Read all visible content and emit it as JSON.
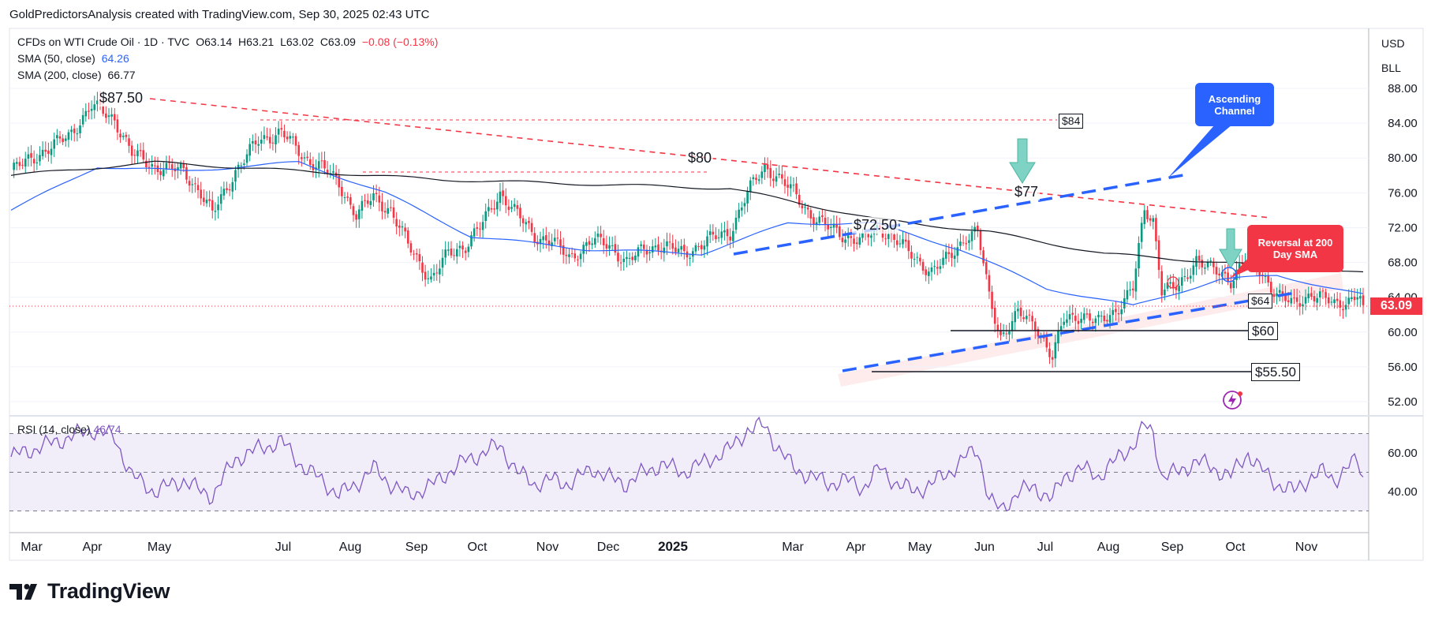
{
  "caption": "GoldPredictorsAnalysis created with TradingView.com, Sep 30, 2025 02:43 UTC",
  "legend": {
    "symbol": "CFDs on WTI Crude Oil · 1D · TVC",
    "open": "O63.14",
    "high": "H63.21",
    "low": "L63.02",
    "close": "C63.09",
    "change": "−0.08 (−0.13%)",
    "sma50_label": "SMA (50, close)",
    "sma50_value": "64.26",
    "sma200_label": "SMA (200, close)",
    "sma200_value": "66.77",
    "rsi_label": "RSI (14, close)",
    "rsi_value": "46.74"
  },
  "axis": {
    "currency": "USD",
    "unit": "BLL",
    "current_price": "63.09"
  },
  "annotations": {
    "peak_87": "$87.50",
    "peak_80": "$80",
    "peak_77": "$77",
    "level_72": "$72.50",
    "level_84": "$84",
    "level_64": "$64",
    "level_60": "$60",
    "level_55": "$55.50",
    "callout_channel": "Ascending Channel",
    "callout_reversal": "Reversal at 200 Day SMA"
  },
  "brand": "TradingView",
  "colors": {
    "up": "#089981",
    "down": "#f23645",
    "sma50": "#2962ff",
    "sma200": "#131722",
    "rsi": "#7e57c2",
    "accent_blue": "#2962ff",
    "accent_red": "#f23645"
  },
  "chart_data": [
    {
      "type": "candlestick",
      "ylim": [
        50,
        90
      ],
      "y_ticks": [
        "88.00",
        "84.00",
        "80.00",
        "76.00",
        "72.00",
        "68.00",
        "64.00",
        "60.00",
        "56.00",
        "52.00"
      ],
      "x_ticks": [
        "Mar",
        "Apr",
        "May",
        "Jul",
        "Aug",
        "Sep",
        "Oct",
        "Nov",
        "Dec",
        "2025",
        "Mar",
        "Apr",
        "May",
        "Jun",
        "Jul",
        "Aug",
        "Sep",
        "Oct",
        "Nov"
      ],
      "series": [
        {
          "name": "WTI Crude Oil",
          "close_path": [
            [
              0,
              78.5
            ],
            [
              10,
              80.5
            ],
            [
              20,
              82.5
            ],
            [
              28,
              86
            ],
            [
              36,
              84.5
            ],
            [
              42,
              80.5
            ],
            [
              50,
              79
            ],
            [
              60,
              78.5
            ],
            [
              66,
              76
            ],
            [
              70,
              73.5
            ],
            [
              78,
              78.5
            ],
            [
              86,
              82
            ],
            [
              94,
              83
            ],
            [
              102,
              80
            ],
            [
              108,
              79
            ],
            [
              114,
              77
            ],
            [
              120,
              73.5
            ],
            [
              126,
              75.5
            ],
            [
              132,
              74
            ],
            [
              138,
              70
            ],
            [
              146,
              66
            ],
            [
              152,
              69
            ],
            [
              158,
              70
            ],
            [
              164,
              72.5
            ],
            [
              170,
              76
            ],
            [
              176,
              73.5
            ],
            [
              182,
              71
            ],
            [
              188,
              70.5
            ],
            [
              194,
              68.5
            ],
            [
              202,
              70.5
            ],
            [
              208,
              70
            ],
            [
              214,
              68
            ],
            [
              220,
              69.5
            ],
            [
              226,
              70
            ],
            [
              234,
              69
            ],
            [
              242,
              70.5
            ],
            [
              250,
              71.5
            ],
            [
              256,
              76
            ],
            [
              262,
              79
            ],
            [
              266,
              78
            ],
            [
              272,
              76
            ],
            [
              278,
              73.5
            ],
            [
              284,
              72
            ],
            [
              290,
              71
            ],
            [
              296,
              70.5
            ],
            [
              302,
              72
            ],
            [
              308,
              70.5
            ],
            [
              314,
              68.5
            ],
            [
              320,
              67
            ],
            [
              326,
              68.5
            ],
            [
              332,
              71
            ],
            [
              336,
              71.5
            ],
            [
              340,
              64
            ],
            [
              344,
              59.5
            ],
            [
              350,
              62
            ],
            [
              356,
              61
            ],
            [
              362,
              57
            ],
            [
              366,
              61.5
            ],
            [
              372,
              62
            ],
            [
              378,
              61
            ],
            [
              384,
              62.5
            ],
            [
              390,
              65
            ],
            [
              394,
              74
            ],
            [
              397,
              73
            ],
            [
              400,
              65
            ],
            [
              406,
              65
            ],
            [
              412,
              68.5
            ],
            [
              418,
              67
            ],
            [
              424,
              66
            ],
            [
              430,
              69
            ],
            [
              434,
              67
            ],
            [
              440,
              64.5
            ],
            [
              446,
              63
            ],
            [
              452,
              64.5
            ],
            [
              456,
              64
            ],
            [
              460,
              63
            ],
            [
              464,
              63.5
            ],
            [
              468,
              64.5
            ],
            [
              470,
              63.1
            ]
          ]
        },
        {
          "name": "SMA (50, close)",
          "values": [
            [
              0,
              74
            ],
            [
              30,
              79
            ],
            [
              60,
              78.5
            ],
            [
              100,
              79.5
            ],
            [
              130,
              76
            ],
            [
              160,
              71
            ],
            [
              200,
              69.5
            ],
            [
              240,
              69
            ],
            [
              270,
              72.5
            ],
            [
              300,
              72.5
            ],
            [
              330,
              69.5
            ],
            [
              360,
              65
            ],
            [
              390,
              63
            ],
            [
              420,
              66
            ],
            [
              440,
              66.5
            ],
            [
              470,
              64.26
            ]
          ]
        },
        {
          "name": "SMA (200, close)",
          "values": [
            [
              0,
              78
            ],
            [
              50,
              79.5
            ],
            [
              100,
              78.5
            ],
            [
              150,
              77.5
            ],
            [
              200,
              77
            ],
            [
              250,
              76.5
            ],
            [
              300,
              73
            ],
            [
              340,
              71.5
            ],
            [
              380,
              69
            ],
            [
              420,
              68
            ],
            [
              470,
              66.77
            ]
          ]
        }
      ]
    },
    {
      "type": "line",
      "name": "RSI (14, close)",
      "ylim": [
        20,
        80
      ],
      "y_ticks": [
        "60.00",
        "40.00"
      ],
      "bands": [
        70,
        50,
        30
      ],
      "values": [
        [
          0,
          58
        ],
        [
          10,
          63
        ],
        [
          20,
          68
        ],
        [
          28,
          72
        ],
        [
          36,
          68
        ],
        [
          42,
          48
        ],
        [
          50,
          40
        ],
        [
          60,
          46
        ],
        [
          66,
          40
        ],
        [
          70,
          38
        ],
        [
          78,
          57
        ],
        [
          86,
          62
        ],
        [
          94,
          66
        ],
        [
          102,
          52
        ],
        [
          108,
          46
        ],
        [
          114,
          38
        ],
        [
          120,
          44
        ],
        [
          126,
          52
        ],
        [
          132,
          44
        ],
        [
          138,
          38
        ],
        [
          146,
          43
        ],
        [
          152,
          50
        ],
        [
          158,
          56
        ],
        [
          164,
          60
        ],
        [
          170,
          64
        ],
        [
          176,
          50
        ],
        [
          182,
          44
        ],
        [
          188,
          46
        ],
        [
          194,
          44
        ],
        [
          202,
          52
        ],
        [
          208,
          47
        ],
        [
          214,
          44
        ],
        [
          220,
          50
        ],
        [
          226,
          54
        ],
        [
          234,
          50
        ],
        [
          242,
          56
        ],
        [
          250,
          62
        ],
        [
          256,
          72
        ],
        [
          262,
          74
        ],
        [
          266,
          64
        ],
        [
          272,
          52
        ],
        [
          278,
          48
        ],
        [
          284,
          44
        ],
        [
          290,
          46
        ],
        [
          296,
          42
        ],
        [
          302,
          52
        ],
        [
          308,
          44
        ],
        [
          314,
          40
        ],
        [
          320,
          44
        ],
        [
          326,
          50
        ],
        [
          332,
          58
        ],
        [
          336,
          62
        ],
        [
          340,
          36
        ],
        [
          344,
          30
        ],
        [
          350,
          40
        ],
        [
          356,
          42
        ],
        [
          362,
          36
        ],
        [
          366,
          48
        ],
        [
          372,
          52
        ],
        [
          378,
          48
        ],
        [
          384,
          56
        ],
        [
          390,
          64
        ],
        [
          394,
          74
        ],
        [
          397,
          70
        ],
        [
          400,
          48
        ],
        [
          406,
          50
        ],
        [
          412,
          56
        ],
        [
          418,
          52
        ],
        [
          424,
          48
        ],
        [
          430,
          60
        ],
        [
          434,
          52
        ],
        [
          440,
          44
        ],
        [
          446,
          40
        ],
        [
          452,
          48
        ],
        [
          456,
          50
        ],
        [
          460,
          46
        ],
        [
          464,
          52
        ],
        [
          468,
          56
        ],
        [
          470,
          46.74
        ]
      ]
    }
  ]
}
